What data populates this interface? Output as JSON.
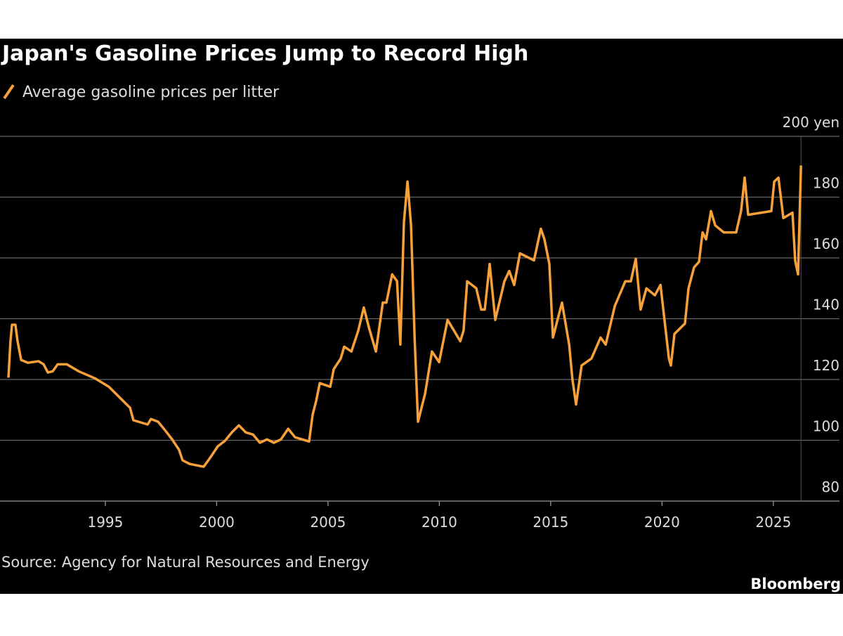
{
  "chart_data": {
    "type": "line",
    "title": "Japan's Gasoline Prices Jump to Record High",
    "source": "Source: Agency for Natural Resources and Energy",
    "credit": "Bloomberg",
    "xlim": [
      1990.27,
      2027.97
    ],
    "ylim": [
      80,
      200
    ],
    "xticks": [
      1995,
      2000,
      2005,
      2010,
      2015,
      2020,
      2025
    ],
    "yticks": [
      80,
      100,
      120,
      140,
      160,
      180,
      {
        "value": 200,
        "label": "200 yen"
      }
    ],
    "grid": true,
    "legend": "top-left",
    "x": [
      1990.65,
      1990.74,
      1990.81,
      1990.96,
      1991.06,
      1991.22,
      1991.53,
      1992.0,
      1992.23,
      1992.42,
      1992.64,
      1992.86,
      1993.27,
      1993.8,
      1994.53,
      1995.16,
      1995.79,
      1996.11,
      1996.26,
      1996.9,
      1997.05,
      1997.37,
      1997.68,
      1998.0,
      1998.31,
      1998.47,
      1998.79,
      1999.42,
      1999.73,
      2000.05,
      2000.37,
      2000.68,
      2001.0,
      2001.31,
      2001.63,
      2001.94,
      2002.26,
      2002.57,
      2002.89,
      2003.21,
      2003.52,
      2004.15,
      2004.31,
      2004.47,
      2004.63,
      2005.1,
      2005.26,
      2005.57,
      2005.73,
      2006.05,
      2006.36,
      2006.61,
      2006.83,
      2007.15,
      2007.46,
      2007.62,
      2007.88,
      2008.1,
      2008.25,
      2008.41,
      2008.57,
      2008.73,
      2008.89,
      2009.04,
      2009.36,
      2009.67,
      2009.99,
      2010.37,
      2010.94,
      2011.09,
      2011.25,
      2011.66,
      2011.88,
      2012.04,
      2012.26,
      2012.51,
      2012.92,
      2013.14,
      2013.36,
      2013.62,
      2014.25,
      2014.56,
      2014.72,
      2014.94,
      2015.1,
      2015.51,
      2015.83,
      2015.98,
      2016.14,
      2016.39,
      2016.83,
      2017.24,
      2017.47,
      2017.88,
      2018.35,
      2018.6,
      2018.82,
      2019.04,
      2019.3,
      2019.68,
      2019.93,
      2020.31,
      2020.4,
      2020.56,
      2021.03,
      2021.19,
      2021.44,
      2021.66,
      2021.82,
      2021.98,
      2022.2,
      2022.39,
      2022.77,
      2023.33,
      2023.55,
      2023.71,
      2023.87,
      2024.91,
      2025.04,
      2025.23,
      2025.45,
      2025.86,
      2025.98,
      2026.11,
      2026.24
    ],
    "series": [
      {
        "name": "Average gasoline prices per litter",
        "color": "#f8a03a",
        "values": [
          120.6,
          132.6,
          138.0,
          138.0,
          132.6,
          126.4,
          125.5,
          126.0,
          125.0,
          122.3,
          122.7,
          125.0,
          125.0,
          122.7,
          120.4,
          117.6,
          113.0,
          110.7,
          106.6,
          105.2,
          107.0,
          106.1,
          103.3,
          100.3,
          96.9,
          93.4,
          92.2,
          91.3,
          94.5,
          98.0,
          99.8,
          102.6,
          104.9,
          102.6,
          101.9,
          99.2,
          100.3,
          99.2,
          100.3,
          103.8,
          101.0,
          99.6,
          108.4,
          113.0,
          118.8,
          117.6,
          123.4,
          126.9,
          130.8,
          129.2,
          136.1,
          143.7,
          137.3,
          129.2,
          145.3,
          145.3,
          154.6,
          152.3,
          131.5,
          171.9,
          185.1,
          170.7,
          133.8,
          106.1,
          115.3,
          129.2,
          125.7,
          139.6,
          132.6,
          136.1,
          152.3,
          150.0,
          143.0,
          143.0,
          158.0,
          139.6,
          152.3,
          155.7,
          151.1,
          161.5,
          159.2,
          169.6,
          166.1,
          158.0,
          133.8,
          145.3,
          131.5,
          119.9,
          111.8,
          124.6,
          126.9,
          133.8,
          131.5,
          144.2,
          152.3,
          152.3,
          159.7,
          143.0,
          150.0,
          147.7,
          151.1,
          126.9,
          124.6,
          135.0,
          138.4,
          150.0,
          156.9,
          158.7,
          168.4,
          166.1,
          175.4,
          170.7,
          168.4,
          168.4,
          175.4,
          186.4,
          174.2,
          175.4,
          185.1,
          186.4,
          173.1,
          174.9,
          159.2,
          154.6,
          190.4
        ]
      }
    ]
  }
}
